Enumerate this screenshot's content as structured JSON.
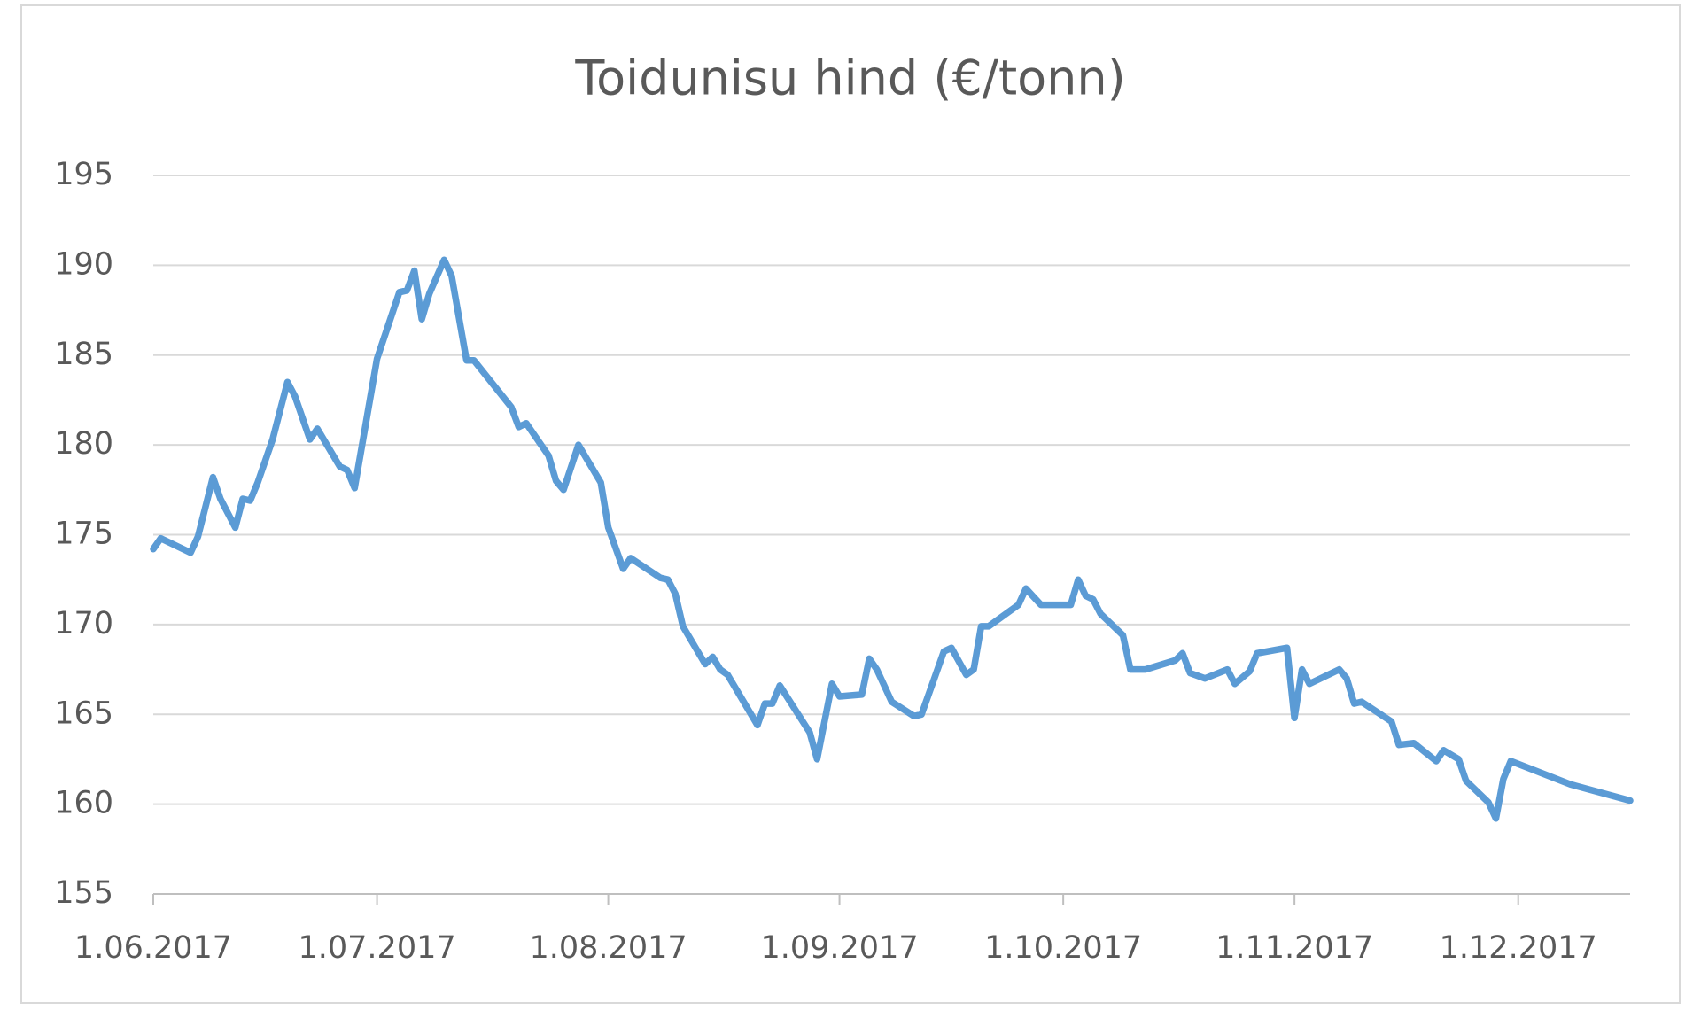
{
  "chart_data": {
    "type": "line",
    "title": "Toidunisu hind (€/tonn)",
    "x": [
      "1.06.2017",
      "2.06.2017",
      "6.06.2017",
      "7.06.2017",
      "9.06.2017",
      "10.06.2017",
      "12.06.2017",
      "13.06.2017",
      "14.06.2017",
      "15.06.2017",
      "17.06.2017",
      "19.06.2017",
      "20.06.2017",
      "22.06.2017",
      "23.06.2017",
      "26.06.2017",
      "27.06.2017",
      "28.06.2017",
      "1.07.2017",
      "4.07.2017",
      "5.07.2017",
      "6.07.2017",
      "7.07.2017",
      "8.07.2017",
      "10.07.2017",
      "11.07.2017",
      "13.07.2017",
      "14.07.2017",
      "19.07.2017",
      "20.07.2017",
      "21.07.2017",
      "24.07.2017",
      "25.07.2017",
      "26.07.2017",
      "28.07.2017",
      "31.07.2017",
      "1.08.2017",
      "3.08.2017",
      "4.08.2017",
      "8.08.2017",
      "9.08.2017",
      "10.08.2017",
      "11.08.2017",
      "14.08.2017",
      "15.08.2017",
      "16.08.2017",
      "17.08.2017",
      "21.08.2017",
      "22.08.2017",
      "23.08.2017",
      "24.08.2017",
      "28.08.2017",
      "29.08.2017",
      "31.08.2017",
      "1.09.2017",
      "4.09.2017",
      "5.09.2017",
      "6.09.2017",
      "8.09.2017",
      "11.09.2017",
      "12.09.2017",
      "15.09.2017",
      "16.09.2017",
      "18.09.2017",
      "19.09.2017",
      "20.09.2017",
      "21.09.2017",
      "25.09.2017",
      "26.09.2017",
      "28.09.2017",
      "2.10.2017",
      "3.10.2017",
      "4.10.2017",
      "5.10.2017",
      "6.10.2017",
      "9.10.2017",
      "10.10.2017",
      "12.10.2017",
      "16.10.2017",
      "17.10.2017",
      "18.10.2017",
      "20.10.2017",
      "23.10.2017",
      "24.10.2017",
      "26.10.2017",
      "27.10.2017",
      "31.10.2017",
      "1.11.2017",
      "2.11.2017",
      "3.11.2017",
      "7.11.2017",
      "8.11.2017",
      "9.11.2017",
      "10.11.2017",
      "14.11.2017",
      "15.11.2017",
      "17.11.2017",
      "20.11.2017",
      "21.11.2017",
      "23.11.2017",
      "24.11.2017",
      "27.11.2017",
      "28.11.2017",
      "29.11.2017",
      "30.11.2017",
      "8.12.2017",
      "16.12.2017"
    ],
    "values": [
      174.2,
      174.8,
      174.0,
      174.9,
      178.2,
      177.0,
      175.4,
      177.0,
      176.9,
      177.9,
      180.3,
      183.5,
      182.7,
      180.3,
      180.9,
      178.8,
      178.6,
      177.6,
      184.8,
      188.5,
      188.6,
      189.7,
      187.0,
      188.4,
      190.3,
      189.4,
      184.7,
      184.7,
      182.1,
      181.0,
      181.2,
      179.4,
      178.0,
      177.5,
      180.0,
      177.9,
      175.4,
      173.1,
      173.7,
      172.6,
      172.5,
      171.7,
      169.9,
      167.8,
      168.2,
      167.5,
      167.2,
      164.4,
      165.6,
      165.6,
      166.6,
      164.0,
      162.5,
      166.7,
      166.0,
      166.1,
      168.1,
      167.5,
      165.7,
      164.9,
      165.0,
      168.5,
      168.7,
      167.2,
      167.5,
      169.9,
      169.9,
      171.1,
      172.0,
      171.1,
      171.1,
      172.5,
      171.6,
      171.4,
      170.6,
      169.4,
      167.5,
      167.5,
      168.0,
      168.4,
      167.3,
      167.0,
      167.5,
      166.7,
      167.4,
      168.4,
      168.7,
      164.8,
      167.5,
      166.7,
      167.5,
      167.0,
      165.6,
      165.7,
      164.6,
      163.3,
      163.4,
      162.4,
      163.0,
      162.5,
      161.3,
      160.1,
      159.2,
      161.4,
      162.4,
      161.1,
      160.2
    ],
    "color": "#5b9bd5",
    "xlim": [
      "1.06.2017",
      "16.12.2017"
    ],
    "xticks": [
      "1.06.2017",
      "1.07.2017",
      "1.08.2017",
      "1.09.2017",
      "1.10.2017",
      "1.11.2017",
      "1.12.2017"
    ],
    "ylim": [
      155,
      195
    ],
    "yticks": [
      155,
      160,
      165,
      170,
      175,
      180,
      185,
      190,
      195
    ],
    "grid": true
  }
}
